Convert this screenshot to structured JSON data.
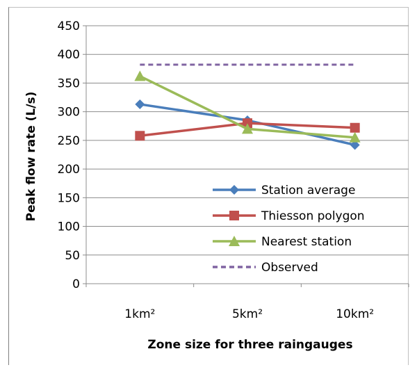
{
  "chart_data": {
    "type": "line",
    "title": "",
    "xlabel": "Zone size for three raingauges",
    "ylabel": "Peak flow rate (L/s)",
    "categories": [
      "1km²",
      "5km²",
      "10km²"
    ],
    "ylim": [
      0,
      450
    ],
    "yticks": [
      0,
      50,
      100,
      150,
      200,
      250,
      300,
      350,
      400,
      450
    ],
    "grid": "horizontal",
    "legend_position": "center-right",
    "series": [
      {
        "name": "Station average",
        "values": [
          313,
          285,
          242
        ],
        "color": "#4a7ebb",
        "marker": "diamond",
        "style": "solid"
      },
      {
        "name": "Thiesson polygon",
        "values": [
          258,
          280,
          272
        ],
        "color": "#c0504d",
        "marker": "square",
        "style": "solid"
      },
      {
        "name": "Nearest station",
        "values": [
          362,
          270,
          255
        ],
        "color": "#9bbb59",
        "marker": "triangle",
        "style": "solid"
      },
      {
        "name": "Observed",
        "values": [
          382,
          382,
          382
        ],
        "color": "#8064a2",
        "marker": "none",
        "style": "dashed"
      }
    ]
  }
}
